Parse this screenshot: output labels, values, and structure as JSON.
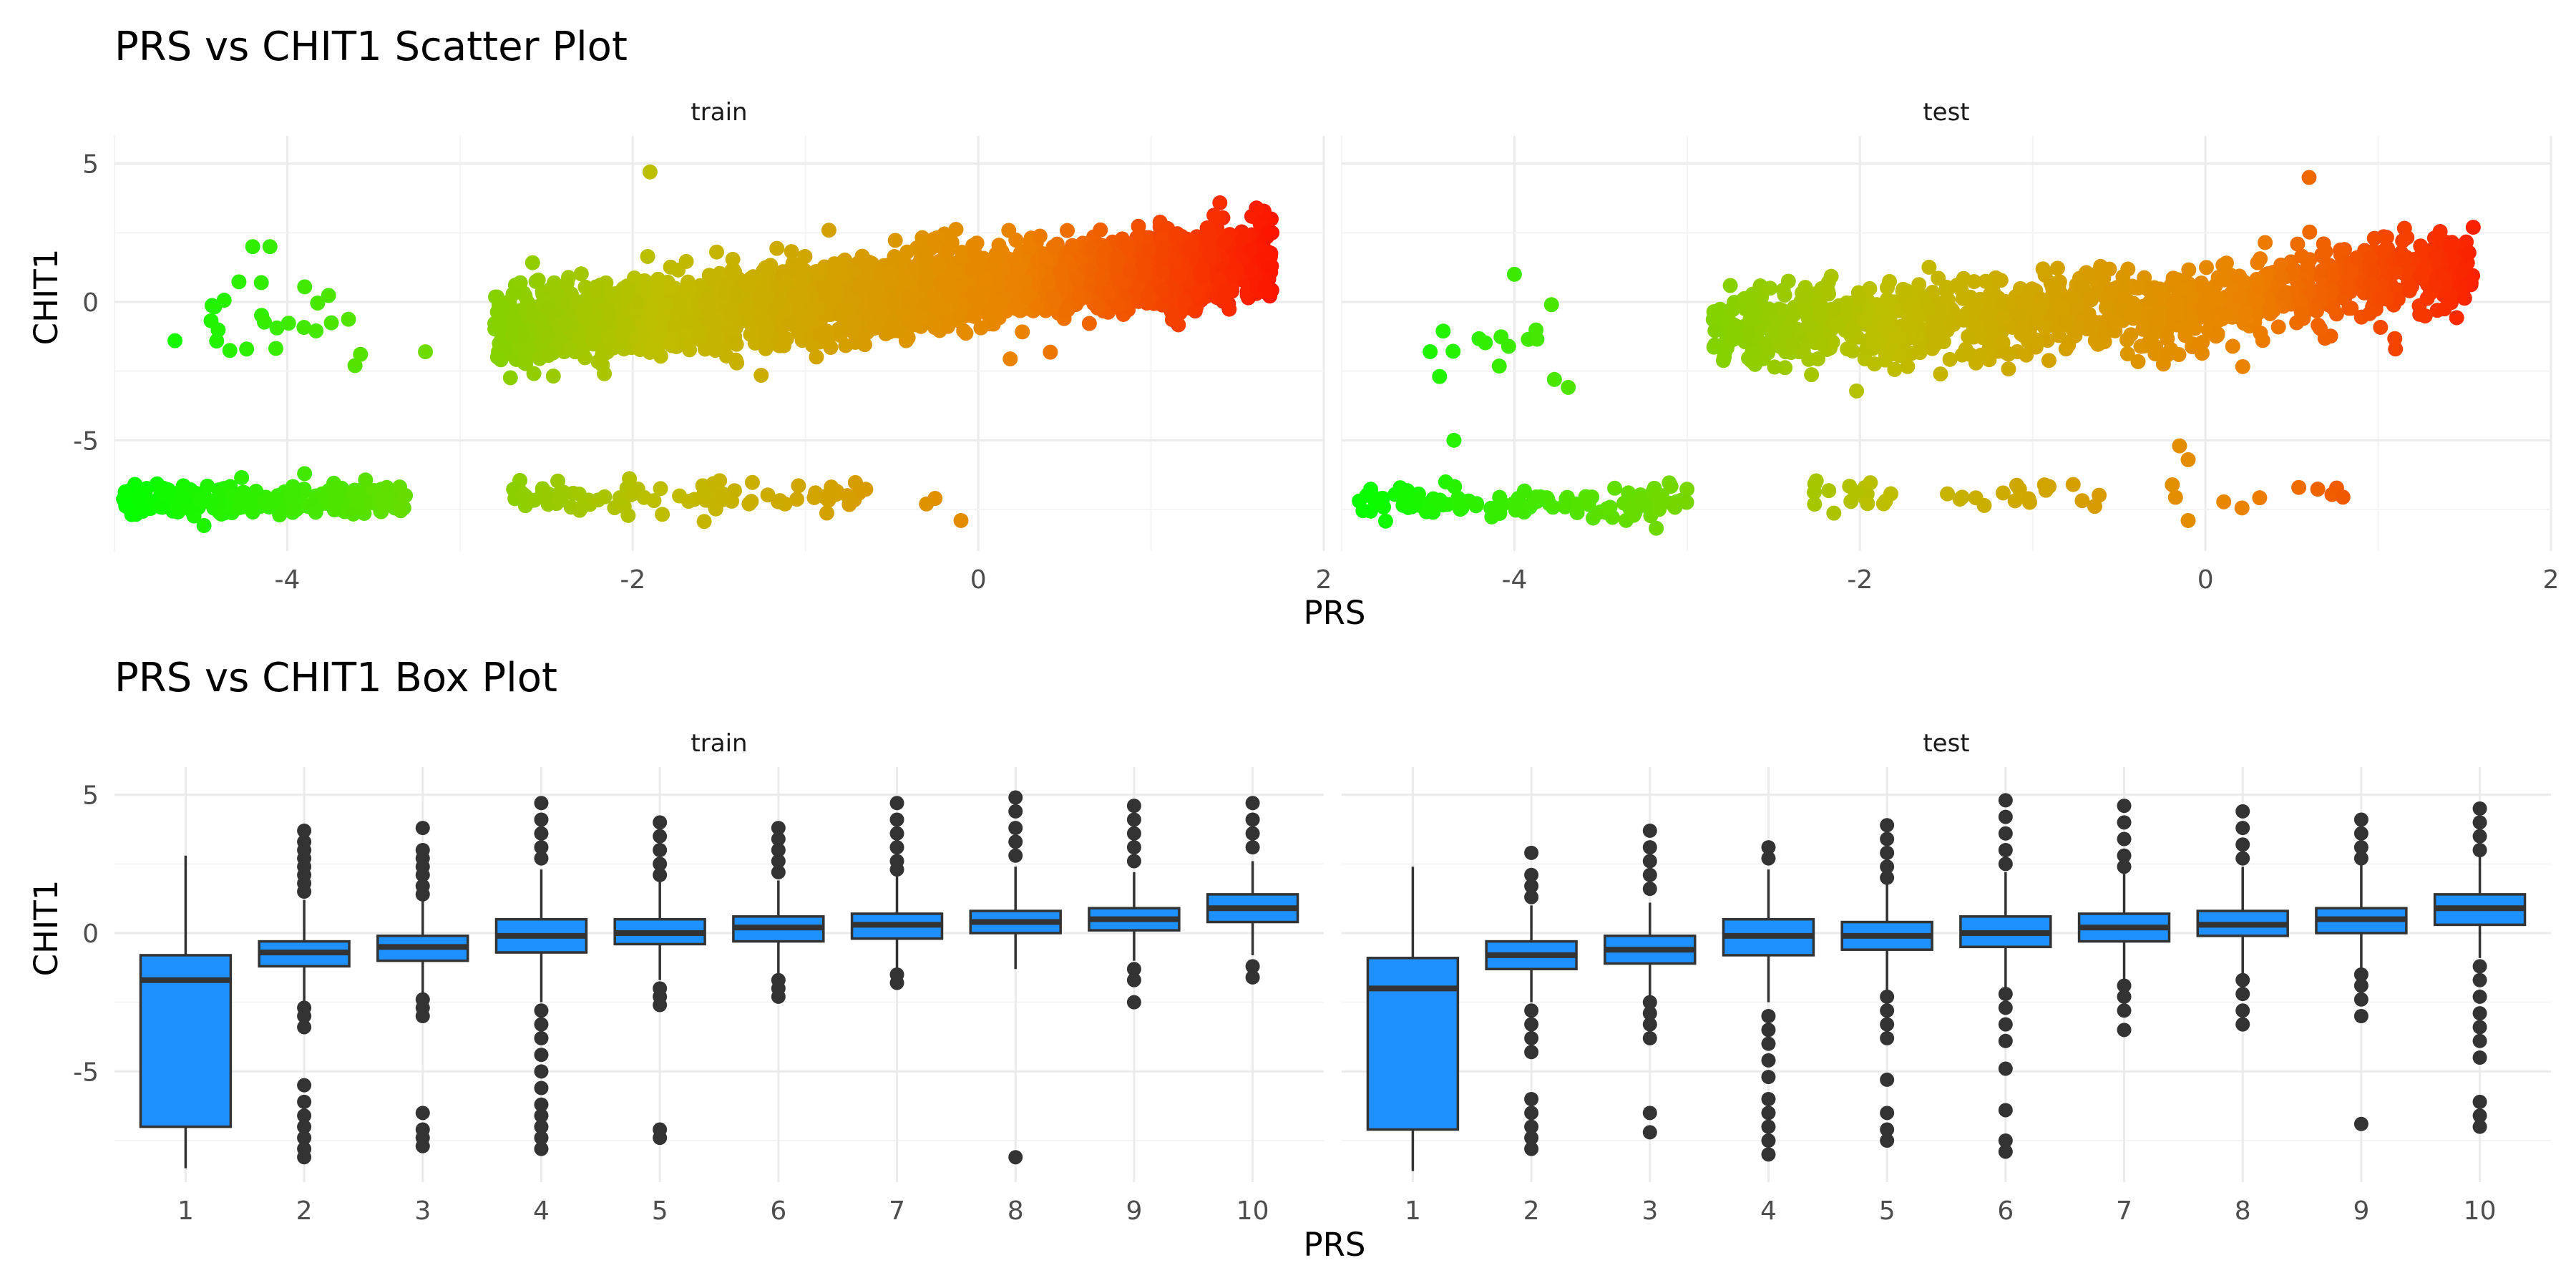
{
  "chart_data": [
    {
      "type": "scatter",
      "title": "PRS vs CHIT1 Scatter Plot",
      "xlabel": "PRS",
      "ylabel": "CHIT1",
      "xlim": [
        -5.0,
        2.0
      ],
      "ylim": [
        -9.0,
        6.0
      ],
      "xticks": [
        -4,
        -2,
        0,
        2
      ],
      "yticks": [
        -5,
        0,
        5
      ],
      "grid": true,
      "color_scale": {
        "low": "#00ff00",
        "high": "#ff0000",
        "by": "PRS"
      },
      "facets": [
        {
          "label": "train",
          "clusters": [
            {
              "x_range": [
                -2.8,
                1.7
              ],
              "y_center_at_x": [
                [
                  -2.5,
                  -0.8
                ],
                [
                  0.0,
                  0.6
                ],
                [
                  1.5,
                  1.5
                ]
              ],
              "y_spread": 1.2,
              "approx_points": 9000
            },
            {
              "x_range": [
                -4.95,
                -3.3
              ],
              "y_center": -7.2,
              "y_spread": 0.5,
              "approx_points": 700
            },
            {
              "x_range": [
                -4.5,
                -3.5
              ],
              "y_center": -0.8,
              "y_spread": 1.5,
              "approx_points": 70
            },
            {
              "x_range": [
                -2.7,
                -1.4
              ],
              "y_center": -7.1,
              "y_spread": 0.5,
              "approx_points": 150
            },
            {
              "x_range": [
                -1.6,
                -0.6
              ],
              "y_center": -7.0,
              "y_spread": 0.5,
              "approx_points": 110
            }
          ],
          "outliers": [
            {
              "x": -4.65,
              "y": -1.4
            },
            {
              "x": -4.2,
              "y": 2.0
            },
            {
              "x": -4.1,
              "y": 2.0
            },
            {
              "x": -4.15,
              "y": 0.7
            },
            {
              "x": -1.9,
              "y": 4.7
            },
            {
              "x": -0.1,
              "y": -7.9
            },
            {
              "x": -0.25,
              "y": -7.1
            },
            {
              "x": -0.3,
              "y": -7.3
            },
            {
              "x": 1.7,
              "y": 2.5
            },
            {
              "x": -3.2,
              "y": -1.8
            }
          ]
        },
        {
          "label": "test",
          "clusters": [
            {
              "x_range": [
                -2.85,
                1.55
              ],
              "y_center_at_x": [
                [
                  -2.5,
                  -0.9
                ],
                [
                  0.0,
                  -0.2
                ],
                [
                  1.4,
                  1.2
                ]
              ],
              "y_spread": 1.3,
              "approx_points": 3500
            },
            {
              "x_range": [
                -4.9,
                -3.0
              ],
              "y_center": -7.2,
              "y_spread": 0.55,
              "approx_points": 350
            },
            {
              "x_range": [
                -4.5,
                -3.6
              ],
              "y_center": -1.5,
              "y_spread": 1.3,
              "approx_points": 45
            },
            {
              "x_range": [
                -2.3,
                -1.8
              ],
              "y_center": -6.9,
              "y_spread": 0.6,
              "approx_points": 50
            },
            {
              "x_range": [
                -1.5,
                -0.6
              ],
              "y_center": -7.0,
              "y_spread": 0.5,
              "approx_points": 55
            },
            {
              "x_range": [
                -0.3,
                0.9
              ],
              "y_center": -7.0,
              "y_spread": 0.6,
              "approx_points": 30
            }
          ],
          "outliers": [
            {
              "x": -4.0,
              "y": 1.0
            },
            {
              "x": -4.35,
              "y": -5.0
            },
            {
              "x": -0.15,
              "y": -5.2
            },
            {
              "x": -0.1,
              "y": -5.7
            },
            {
              "x": 0.6,
              "y": 4.5
            },
            {
              "x": 1.1,
              "y": -1.7
            },
            {
              "x": 1.55,
              "y": 2.7
            },
            {
              "x": -0.1,
              "y": -7.9
            }
          ]
        }
      ]
    },
    {
      "type": "box",
      "title": "PRS vs CHIT1 Box Plot",
      "xlabel": "PRS",
      "ylabel": "CHIT1",
      "categories": [
        "1",
        "2",
        "3",
        "4",
        "5",
        "6",
        "7",
        "8",
        "9",
        "10"
      ],
      "ylim": [
        -9.0,
        6.0
      ],
      "yticks": [
        -5,
        0,
        5
      ],
      "grid": true,
      "box_color": "#1E90FF",
      "facets": [
        {
          "label": "train",
          "boxes": [
            {
              "q1": -7.0,
              "median": -1.7,
              "q3": -0.8,
              "whisker_low": -8.5,
              "whisker_high": 2.8,
              "outliers": []
            },
            {
              "q1": -1.2,
              "median": -0.7,
              "q3": -0.3,
              "whisker_low": -2.5,
              "whisker_high": 1.2,
              "outliers": [
                3.7,
                3.3,
                3.0,
                2.7,
                2.4,
                2.1,
                1.8,
                1.5,
                -2.7,
                -3.0,
                -3.4,
                -5.5,
                -6.1,
                -6.6,
                -7.0,
                -7.4,
                -7.8,
                -8.1
              ]
            },
            {
              "q1": -1.0,
              "median": -0.5,
              "q3": -0.1,
              "whisker_low": -2.2,
              "whisker_high": 1.2,
              "outliers": [
                3.8,
                3.0,
                2.7,
                2.4,
                2.1,
                1.7,
                1.4,
                -2.4,
                -2.7,
                -3.0,
                -6.5,
                -7.1,
                -7.4,
                -7.7
              ]
            },
            {
              "q1": -0.7,
              "median": -0.1,
              "q3": 0.5,
              "whisker_low": -2.5,
              "whisker_high": 2.3,
              "outliers": [
                4.7,
                4.1,
                3.6,
                3.1,
                2.7,
                -2.8,
                -3.3,
                -3.8,
                -4.4,
                -5.0,
                -5.6,
                -6.2,
                -6.6,
                -7.0,
                -7.4,
                -7.8
              ]
            },
            {
              "q1": -0.4,
              "median": 0.0,
              "q3": 0.5,
              "whisker_low": -1.7,
              "whisker_high": 1.9,
              "outliers": [
                4.0,
                3.5,
                3.0,
                2.5,
                2.1,
                -2.0,
                -2.3,
                -2.6,
                -7.1,
                -7.4
              ]
            },
            {
              "q1": -0.3,
              "median": 0.2,
              "q3": 0.6,
              "whisker_low": -1.5,
              "whisker_high": 1.9,
              "outliers": [
                3.8,
                3.4,
                3.0,
                2.6,
                2.2,
                -1.7,
                -2.0,
                -2.3
              ]
            },
            {
              "q1": -0.2,
              "median": 0.3,
              "q3": 0.7,
              "whisker_low": -1.4,
              "whisker_high": 2.1,
              "outliers": [
                4.7,
                4.1,
                3.6,
                3.1,
                2.6,
                2.3,
                -1.5,
                -1.8
              ]
            },
            {
              "q1": 0.0,
              "median": 0.4,
              "q3": 0.8,
              "whisker_low": -1.3,
              "whisker_high": 2.4,
              "outliers": [
                4.9,
                4.4,
                3.8,
                3.3,
                2.8,
                -8.1
              ]
            },
            {
              "q1": 0.1,
              "median": 0.5,
              "q3": 0.9,
              "whisker_low": -1.0,
              "whisker_high": 2.2,
              "outliers": [
                4.6,
                4.1,
                3.6,
                3.1,
                2.6,
                -1.3,
                -1.7,
                -2.5
              ]
            },
            {
              "q1": 0.4,
              "median": 0.9,
              "q3": 1.4,
              "whisker_low": -0.8,
              "whisker_high": 2.6,
              "outliers": [
                4.7,
                4.1,
                3.6,
                3.1,
                -1.2,
                -1.6
              ]
            }
          ]
        },
        {
          "label": "test",
          "boxes": [
            {
              "q1": -7.1,
              "median": -2.0,
              "q3": -0.9,
              "whisker_low": -8.6,
              "whisker_high": 2.4,
              "outliers": []
            },
            {
              "q1": -1.3,
              "median": -0.8,
              "q3": -0.3,
              "whisker_low": -2.5,
              "whisker_high": 1.0,
              "outliers": [
                2.9,
                2.1,
                1.7,
                1.3,
                -2.8,
                -3.3,
                -3.8,
                -4.3,
                -6.0,
                -6.5,
                -7.0,
                -7.4,
                -7.8
              ]
            },
            {
              "q1": -1.1,
              "median": -0.6,
              "q3": -0.1,
              "whisker_low": -2.3,
              "whisker_high": 1.1,
              "outliers": [
                3.7,
                3.1,
                2.6,
                2.1,
                1.6,
                -2.5,
                -2.9,
                -3.3,
                -3.8,
                -6.5,
                -7.2
              ]
            },
            {
              "q1": -0.8,
              "median": -0.1,
              "q3": 0.5,
              "whisker_low": -2.5,
              "whisker_high": 2.3,
              "outliers": [
                3.1,
                2.7,
                -3.0,
                -3.5,
                -4.0,
                -4.6,
                -5.2,
                -6.0,
                -6.5,
                -7.0,
                -7.5,
                -8.0
              ]
            },
            {
              "q1": -0.6,
              "median": -0.1,
              "q3": 0.4,
              "whisker_low": -2.1,
              "whisker_high": 1.8,
              "outliers": [
                3.9,
                3.4,
                2.9,
                2.4,
                2.0,
                -2.3,
                -2.8,
                -3.3,
                -3.8,
                -5.3,
                -6.5,
                -7.1,
                -7.5
              ]
            },
            {
              "q1": -0.5,
              "median": 0.0,
              "q3": 0.6,
              "whisker_low": -2.0,
              "whisker_high": 2.2,
              "outliers": [
                4.8,
                4.2,
                3.6,
                3.0,
                2.5,
                -2.2,
                -2.7,
                -3.3,
                -3.9,
                -4.9,
                -6.4,
                -7.5,
                -7.9
              ]
            },
            {
              "q1": -0.3,
              "median": 0.2,
              "q3": 0.7,
              "whisker_low": -1.7,
              "whisker_high": 2.2,
              "outliers": [
                4.6,
                4.0,
                3.4,
                2.8,
                2.4,
                -1.9,
                -2.3,
                -2.8,
                -3.5
              ]
            },
            {
              "q1": -0.1,
              "median": 0.3,
              "q3": 0.8,
              "whisker_low": -1.5,
              "whisker_high": 2.4,
              "outliers": [
                4.4,
                3.8,
                3.2,
                2.7,
                -1.7,
                -2.2,
                -2.8,
                -3.3
              ]
            },
            {
              "q1": 0.0,
              "median": 0.5,
              "q3": 0.9,
              "whisker_low": -1.3,
              "whisker_high": 2.5,
              "outliers": [
                4.1,
                3.6,
                3.1,
                2.7,
                -1.5,
                -1.9,
                -2.4,
                -3.0,
                -6.9
              ]
            },
            {
              "q1": 0.3,
              "median": 0.9,
              "q3": 1.4,
              "whisker_low": -0.9,
              "whisker_high": 2.8,
              "outliers": [
                4.5,
                4.0,
                3.5,
                3.0,
                -1.2,
                -1.7,
                -2.3,
                -2.9,
                -3.4,
                -3.9,
                -4.5,
                -6.1,
                -6.6,
                -7.0
              ]
            }
          ]
        }
      ]
    }
  ]
}
